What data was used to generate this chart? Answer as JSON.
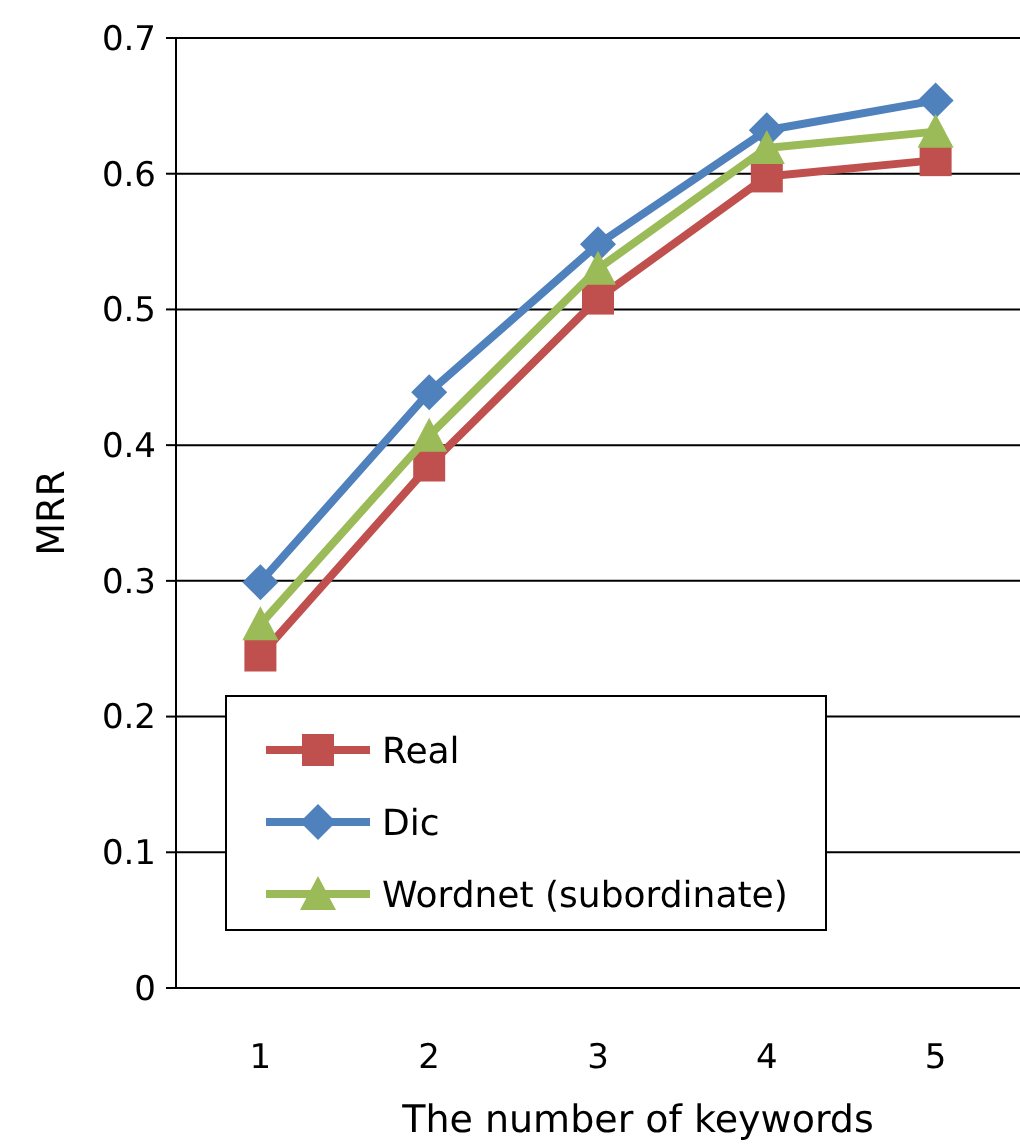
{
  "chart_data": {
    "type": "line",
    "xlabel": "The number of keywords",
    "ylabel": "MRR",
    "categories": [
      "1",
      "2",
      "3",
      "4",
      "5"
    ],
    "series": [
      {
        "name": "Real",
        "color": "#c0504d",
        "marker": "square",
        "values": [
          0.245,
          0.385,
          0.508,
          0.598,
          0.61
        ]
      },
      {
        "name": "Dic",
        "color": "#4f81bd",
        "marker": "diamond",
        "values": [
          0.299,
          0.439,
          0.548,
          0.632,
          0.654
        ]
      },
      {
        "name": "Wordnet (subordinate)",
        "color": "#9bbb59",
        "marker": "triangle",
        "values": [
          0.268,
          0.407,
          0.53,
          0.619,
          0.631
        ]
      }
    ],
    "ylim": [
      0,
      0.7
    ],
    "yticks": [
      0,
      0.1,
      0.2,
      0.3,
      0.4,
      0.5,
      0.6,
      0.7
    ],
    "grid": "y",
    "legend": "bottom left",
    "line_style": "solid"
  }
}
